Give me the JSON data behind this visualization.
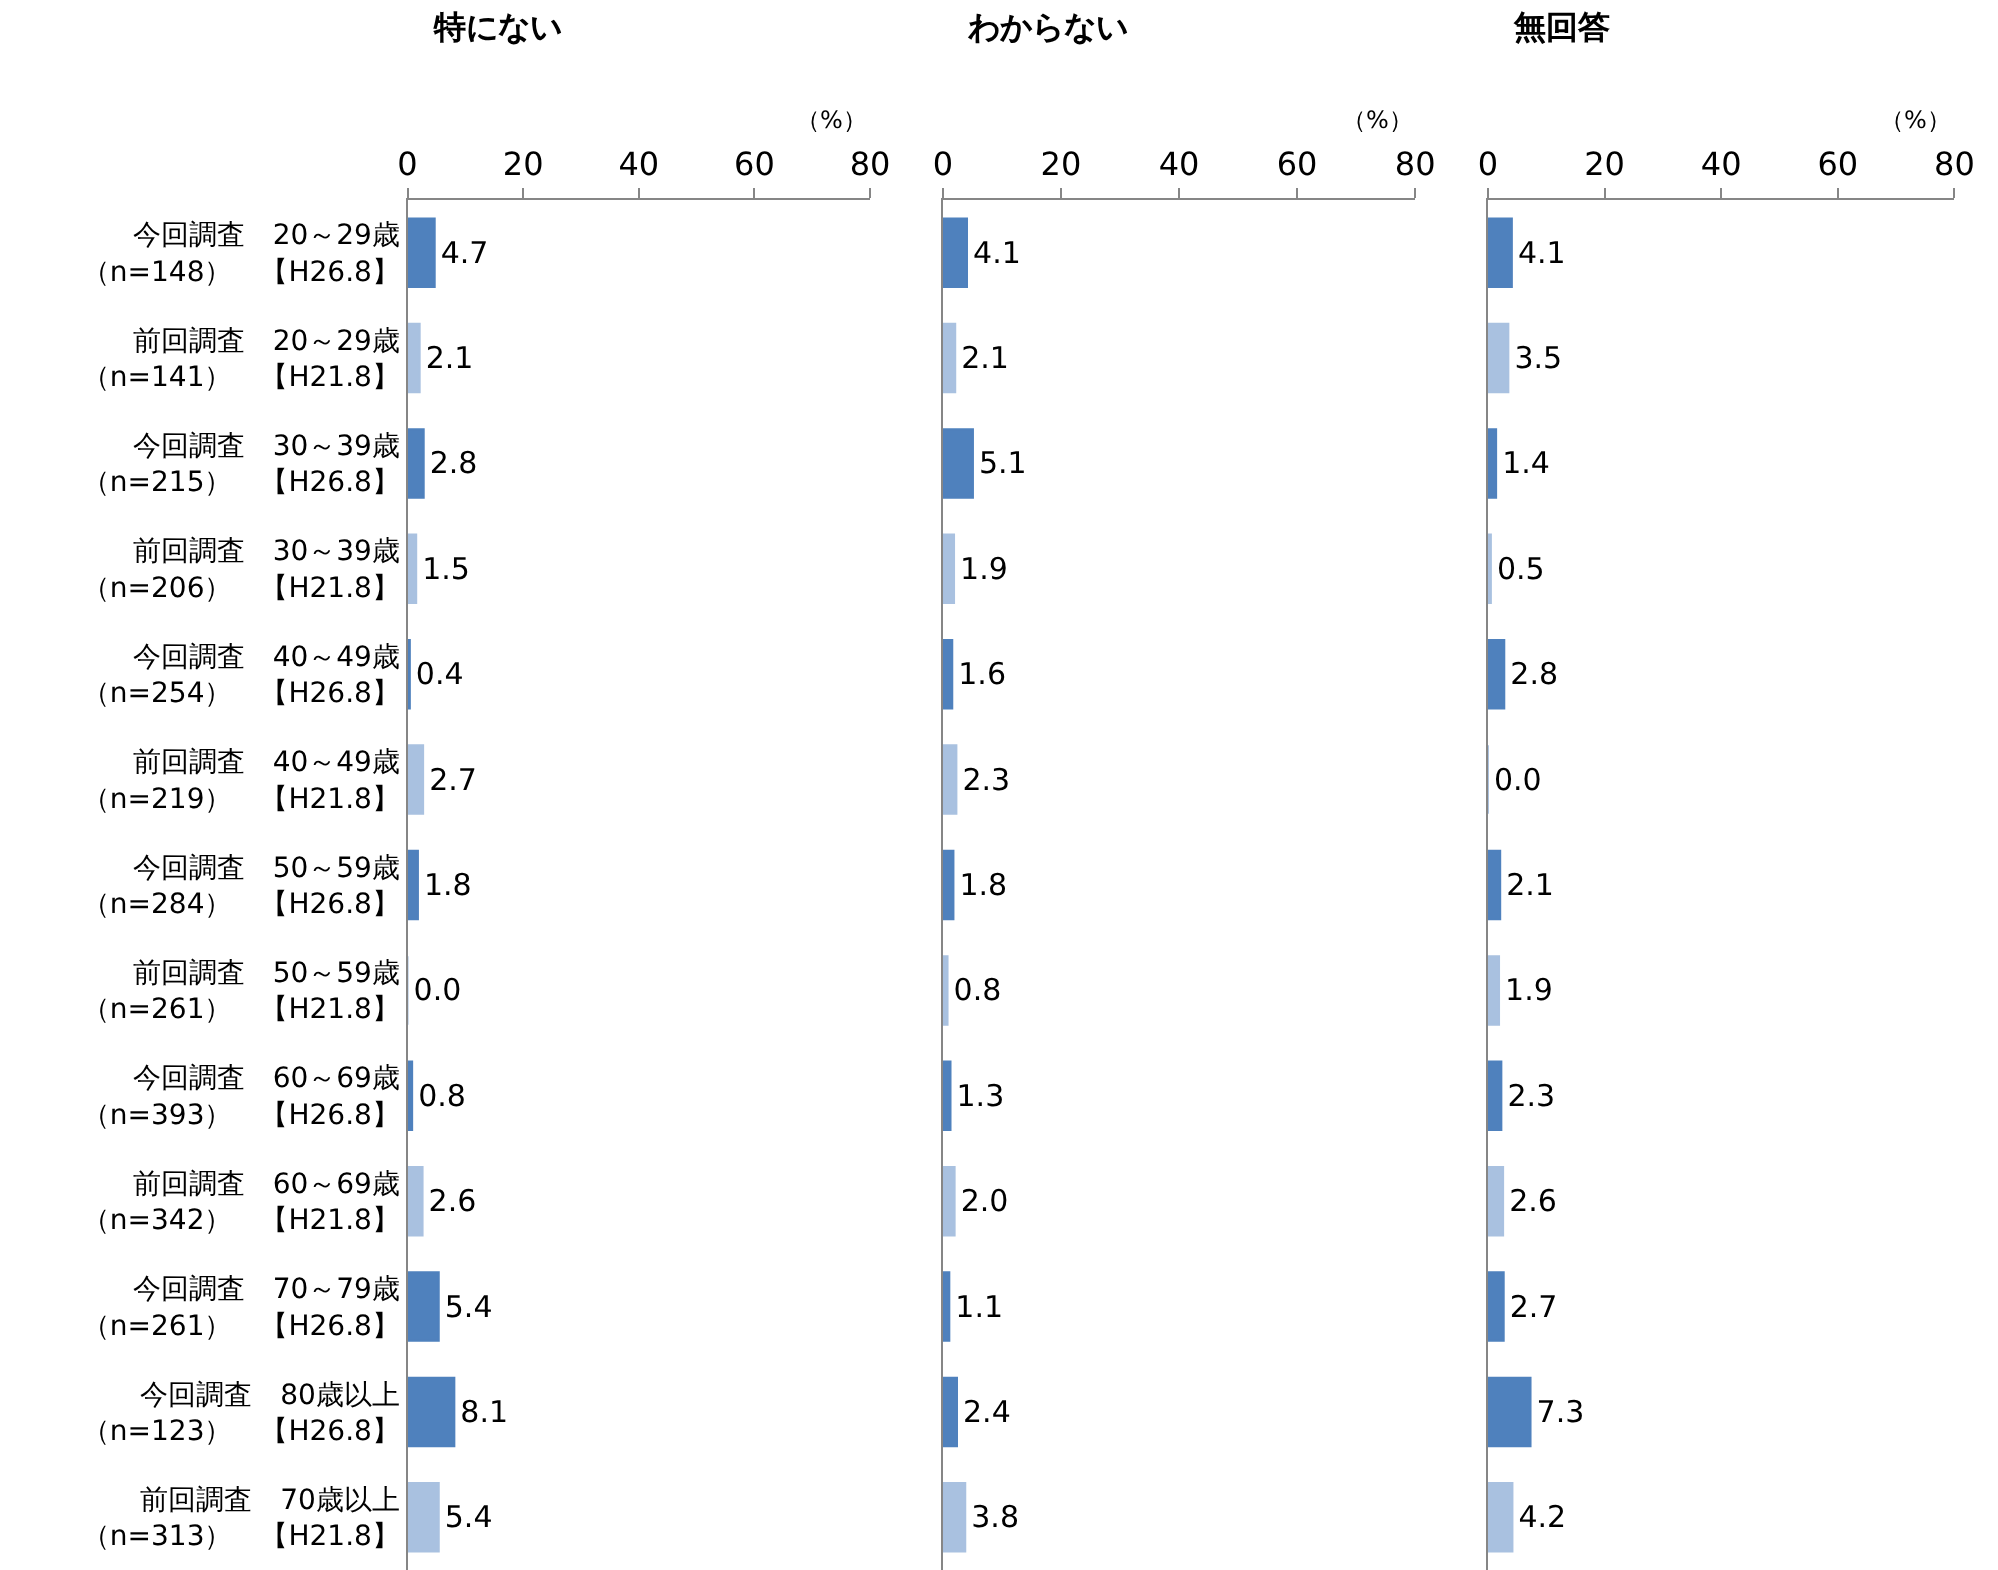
{
  "chart_data": [
    {
      "type": "bar",
      "orientation": "horizontal",
      "title": "特にない",
      "annotations": [
        "（%）"
      ],
      "categories": [
        "今回調査　20～29歳（n=148）　【H26.8】",
        "前回調査　20～29歳（n=141）　【H21.8】",
        "今回調査　30～39歳（n=215）　【H26.8】",
        "前回調査　30～39歳（n=206）　【H21.8】",
        "今回調査　40～49歳（n=254）　【H26.8】",
        "前回調査　40～49歳（n=219）　【H21.8】",
        "今回調査　50～59歳（n=284）　【H26.8】",
        "前回調査　50～59歳（n=261）　【H21.8】",
        "今回調査　60～69歳（n=393）　【H26.8】",
        "前回調査　60～69歳（n=342）　【H21.8】",
        "今回調査　70～79歳（n=261）　【H26.8】",
        "今回調査　80歳以上（n=123）　【H26.8】",
        "前回調査　70歳以上（n=313）　【H21.8】"
      ],
      "values": [
        4.7,
        2.1,
        2.8,
        1.5,
        0.4,
        2.7,
        1.8,
        0.0,
        0.8,
        2.6,
        5.4,
        8.1,
        5.4
      ],
      "value_labels": [
        "4.7",
        "2.1",
        "2.8",
        "1.5",
        "0.4",
        "2.7",
        "1.8",
        "0.0",
        "0.8",
        "2.6",
        "5.4",
        "8.1",
        "5.4"
      ],
      "colors": [
        "#4f81bd",
        "#a9c1e0",
        "#4f81bd",
        "#a9c1e0",
        "#4f81bd",
        "#a9c1e0",
        "#4f81bd",
        "#a9c1e0",
        "#4f81bd",
        "#a9c1e0",
        "#4f81bd",
        "#4f81bd",
        "#a9c1e0"
      ],
      "xlim": [
        0,
        80
      ],
      "xticks": [
        0,
        20,
        40,
        60,
        80
      ],
      "grid": false
    },
    {
      "type": "bar",
      "orientation": "horizontal",
      "title": "わからない",
      "annotations": [
        "（%）"
      ],
      "values": [
        4.1,
        2.1,
        5.1,
        1.9,
        1.6,
        2.3,
        1.8,
        0.8,
        1.3,
        2.0,
        1.1,
        2.4,
        3.8
      ],
      "value_labels": [
        "4.1",
        "2.1",
        "5.1",
        "1.9",
        "1.6",
        "2.3",
        "1.8",
        "0.8",
        "1.3",
        "2.0",
        "1.1",
        "2.4",
        "3.8"
      ],
      "colors": [
        "#4f81bd",
        "#a9c1e0",
        "#4f81bd",
        "#a9c1e0",
        "#4f81bd",
        "#a9c1e0",
        "#4f81bd",
        "#a9c1e0",
        "#4f81bd",
        "#a9c1e0",
        "#4f81bd",
        "#4f81bd",
        "#a9c1e0"
      ],
      "xlim": [
        0,
        80
      ],
      "xticks": [
        0,
        20,
        40,
        60,
        80
      ],
      "grid": false,
      "tick_labels": "x"
    },
    {
      "type": "bar",
      "orientation": "horizontal",
      "title": "無回答",
      "annotations": [
        "（%）"
      ],
      "values": [
        4.1,
        3.5,
        1.4,
        0.5,
        2.8,
        0.0,
        2.1,
        1.9,
        2.3,
        2.6,
        2.7,
        7.3,
        4.2
      ],
      "value_labels": [
        "4.1",
        "3.5",
        "1.4",
        "0.5",
        "2.8",
        "0.0",
        "2.1",
        "1.9",
        "2.3",
        "2.6",
        "2.7",
        "7.3",
        "4.2"
      ],
      "colors": [
        "#4f81bd",
        "#a9c1e0",
        "#4f81bd",
        "#a9c1e0",
        "#4f81bd",
        "#a9c1e0",
        "#4f81bd",
        "#a9c1e0",
        "#4f81bd",
        "#a9c1e0",
        "#4f81bd",
        "#4f81bd",
        "#a9c1e0"
      ],
      "xlim": [
        0,
        80
      ],
      "xticks": [
        0,
        20,
        40,
        60,
        80
      ],
      "grid": false,
      "tick_labels": "x"
    }
  ]
}
